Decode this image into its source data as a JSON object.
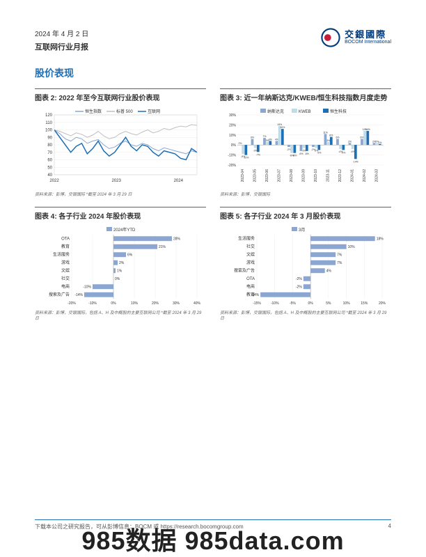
{
  "header": {
    "date": "2024 年 4 月 2 日",
    "report_type": "互联网行业月报",
    "logo_cn": "交銀國際",
    "logo_en": "BOCOM International"
  },
  "section_title": "股价表现",
  "chart2": {
    "type": "line",
    "title": "图表 2: 2022 年至今互联网行业股价表现",
    "legend": [
      {
        "label": "恒生指数",
        "color": "#8aa6d1"
      },
      {
        "label": "标普 500",
        "color": "#bfbfbf"
      },
      {
        "label": "互联网",
        "color": "#1f6fb5"
      }
    ],
    "ylim": [
      40,
      120
    ],
    "ytick_step": 10,
    "xticks": [
      "2022",
      "2023",
      "2024"
    ],
    "background_color": "#ffffff",
    "source": "资料来源：彭博，交银国际  *截至 2024 年 3 月 29 日",
    "series": {
      "hs": [
        100,
        95,
        88,
        85,
        90,
        88,
        82,
        85,
        87,
        80,
        75,
        77,
        82,
        85,
        80,
        78,
        82,
        80,
        75,
        72,
        76,
        74,
        72,
        70,
        68,
        72,
        70
      ],
      "sp": [
        100,
        98,
        95,
        92,
        96,
        94,
        90,
        93,
        98,
        92,
        88,
        90,
        95,
        98,
        95,
        93,
        97,
        100,
        96,
        98,
        102,
        100,
        103,
        105,
        104,
        107,
        106
      ],
      "net": [
        100,
        90,
        80,
        70,
        78,
        82,
        68,
        75,
        85,
        72,
        65,
        70,
        80,
        90,
        78,
        72,
        80,
        78,
        70,
        65,
        72,
        70,
        68,
        62,
        60,
        75,
        70
      ]
    }
  },
  "chart3": {
    "type": "grouped-bar",
    "title": "图表 3: 近一年纳斯达克/KWEB/恒生科技指数月度走势",
    "legend": [
      {
        "label": "纳斯达克",
        "color": "#8aa6d1"
      },
      {
        "label": "KWEB",
        "color": "#bfdce8"
      },
      {
        "label": "恒生科技",
        "color": "#1f6fb5"
      }
    ],
    "ylim": [
      -20,
      30
    ],
    "ytick_step": 10,
    "categories": [
      "2023-04",
      "2023-05",
      "2023-06",
      "2023-07",
      "2023-08",
      "2023-09",
      "2023-10",
      "2023-11",
      "2023-12",
      "2024-01",
      "2024-02",
      "2024-03"
    ],
    "series": {
      "nasdaq": [
        0,
        6,
        7,
        4,
        -2,
        -6,
        -2,
        11,
        6,
        2,
        6,
        2
      ],
      "kweb": [
        -9,
        -3,
        3,
        19,
        -8,
        -3,
        -3,
        3,
        -4,
        -4,
        14,
        2
      ],
      "hstech": [
        -10,
        -7,
        4,
        16,
        -8,
        -6,
        -5,
        8,
        -5,
        -14,
        14,
        1
      ]
    },
    "source": "资料来源：彭博，交银国际"
  },
  "chart4": {
    "type": "h-bar",
    "title": "图表 4: 各子行业 2024 年股价表现",
    "legend_label": "2024年YTD",
    "legend_color": "#8aa6d1",
    "xlim": [
      -20,
      40
    ],
    "xtick_step": 10,
    "categories": [
      "OTA",
      "教育",
      "生活服务",
      "游戏",
      "文娱",
      "社交",
      "电商",
      "搜索及广告"
    ],
    "values": [
      28,
      21,
      6,
      2,
      1,
      0,
      -10,
      -14
    ],
    "source": "资料来源：彭博，交银国际，包括 A、H 及中概股的主要互联网公司  *截至 2024 年 3 月 29 日"
  },
  "chart5": {
    "type": "h-bar",
    "title": "图表 5: 各子行业 2024 年 3 月股价表现",
    "legend_label": "3月",
    "legend_color": "#8aa6d1",
    "xlim": [
      -15,
      20
    ],
    "xtick_step": 5,
    "categories": [
      "生活服务",
      "社交",
      "文娱",
      "游戏",
      "搜索及广告",
      "OTA",
      "电商",
      "教育"
    ],
    "values": [
      18,
      10,
      7,
      7,
      4,
      -2,
      -2,
      -14
    ],
    "source": "资料来源：彭博，交银国际，包括 A、H 及中概股的主要互联网公司  *截至 2024 年 3 月 29 日"
  },
  "footer": {
    "text": "下载本公司之研究报告，可从彭博信息：BOCM 或 https://research.bocomgroup.com",
    "page": "4"
  },
  "watermark": "985数据 985data.com"
}
